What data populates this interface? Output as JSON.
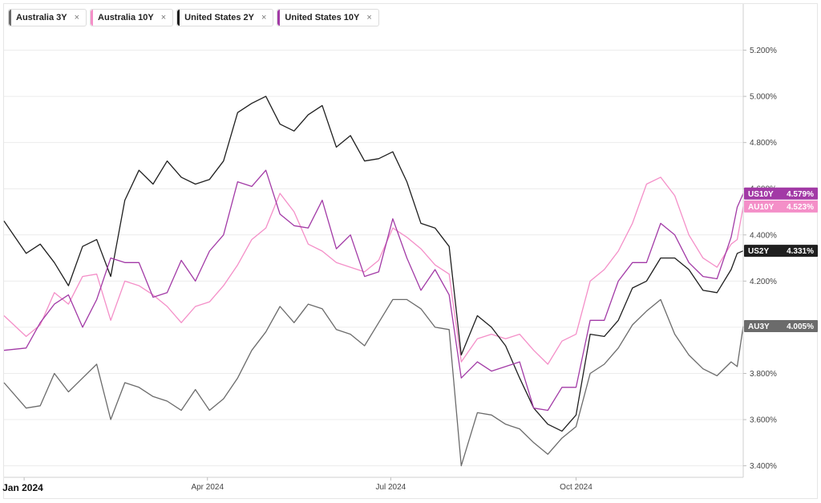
{
  "legend": [
    {
      "label": "Australia 3Y",
      "color": "#6b6b6b",
      "close": "×"
    },
    {
      "label": "Australia 10Y",
      "color": "#f48fc8",
      "close": "×"
    },
    {
      "label": "United States 2Y",
      "color": "#1f1f1f",
      "close": "×"
    },
    {
      "label": "United States 10Y",
      "color": "#a23aa6",
      "close": "×"
    }
  ],
  "chart_data": {
    "type": "line",
    "title": "",
    "xlabel": "",
    "ylabel": "",
    "x_range": [
      "2023-12-22",
      "2024-12-23"
    ],
    "ylim": [
      3.35,
      5.4
    ],
    "y_ticks": [
      "3.400%",
      "3.600%",
      "3.800%",
      "4.000%",
      "4.200%",
      "4.400%",
      "4.600%",
      "4.800%",
      "5.000%",
      "5.200%"
    ],
    "x_ticks": [
      {
        "date": "2024-01-01",
        "label": "Jan 2024"
      },
      {
        "date": "2024-04-01",
        "label": "Apr 2024"
      },
      {
        "date": "2024-07-01",
        "label": "Jul 2024"
      },
      {
        "date": "2024-10-01",
        "label": "Oct 2024"
      }
    ],
    "grid": "horizontal",
    "series": [
      {
        "name": "Australia 3Y",
        "tag": "AU3Y",
        "last": "4.005%",
        "color": "#6b6b6b",
        "points": [
          [
            "2023-12-22",
            3.76
          ],
          [
            "2024-01-02",
            3.65
          ],
          [
            "2024-01-09",
            3.66
          ],
          [
            "2024-01-16",
            3.8
          ],
          [
            "2024-01-23",
            3.72
          ],
          [
            "2024-01-30",
            3.78
          ],
          [
            "2024-02-06",
            3.84
          ],
          [
            "2024-02-13",
            3.6
          ],
          [
            "2024-02-20",
            3.76
          ],
          [
            "2024-02-27",
            3.74
          ],
          [
            "2024-03-05",
            3.7
          ],
          [
            "2024-03-12",
            3.68
          ],
          [
            "2024-03-19",
            3.64
          ],
          [
            "2024-03-26",
            3.73
          ],
          [
            "2024-04-02",
            3.64
          ],
          [
            "2024-04-09",
            3.69
          ],
          [
            "2024-04-16",
            3.78
          ],
          [
            "2024-04-23",
            3.9
          ],
          [
            "2024-04-30",
            3.98
          ],
          [
            "2024-05-07",
            4.09
          ],
          [
            "2024-05-14",
            4.02
          ],
          [
            "2024-05-21",
            4.1
          ],
          [
            "2024-05-28",
            4.08
          ],
          [
            "2024-06-04",
            3.99
          ],
          [
            "2024-06-11",
            3.97
          ],
          [
            "2024-06-18",
            3.92
          ],
          [
            "2024-06-25",
            4.02
          ],
          [
            "2024-07-02",
            4.12
          ],
          [
            "2024-07-09",
            4.12
          ],
          [
            "2024-07-16",
            4.08
          ],
          [
            "2024-07-23",
            4.0
          ],
          [
            "2024-07-30",
            3.99
          ],
          [
            "2024-08-05",
            3.4
          ],
          [
            "2024-08-13",
            3.63
          ],
          [
            "2024-08-20",
            3.62
          ],
          [
            "2024-08-27",
            3.58
          ],
          [
            "2024-09-03",
            3.56
          ],
          [
            "2024-09-10",
            3.5
          ],
          [
            "2024-09-17",
            3.45
          ],
          [
            "2024-09-24",
            3.52
          ],
          [
            "2024-10-01",
            3.57
          ],
          [
            "2024-10-08",
            3.8
          ],
          [
            "2024-10-15",
            3.84
          ],
          [
            "2024-10-22",
            3.91
          ],
          [
            "2024-10-29",
            4.01
          ],
          [
            "2024-11-05",
            4.07
          ],
          [
            "2024-11-12",
            4.12
          ],
          [
            "2024-11-19",
            3.97
          ],
          [
            "2024-11-26",
            3.88
          ],
          [
            "2024-12-03",
            3.82
          ],
          [
            "2024-12-10",
            3.79
          ],
          [
            "2024-12-17",
            3.85
          ],
          [
            "2024-12-20",
            3.83
          ],
          [
            "2024-12-23",
            4.005
          ]
        ]
      },
      {
        "name": "Australia 10Y",
        "tag": "AU10Y",
        "last": "4.523%",
        "color": "#f48fc8",
        "points": [
          [
            "2023-12-22",
            4.05
          ],
          [
            "2024-01-02",
            3.96
          ],
          [
            "2024-01-09",
            4.01
          ],
          [
            "2024-01-16",
            4.15
          ],
          [
            "2024-01-23",
            4.1
          ],
          [
            "2024-01-30",
            4.22
          ],
          [
            "2024-02-06",
            4.23
          ],
          [
            "2024-02-13",
            4.03
          ],
          [
            "2024-02-20",
            4.2
          ],
          [
            "2024-02-27",
            4.18
          ],
          [
            "2024-03-05",
            4.14
          ],
          [
            "2024-03-12",
            4.09
          ],
          [
            "2024-03-19",
            4.02
          ],
          [
            "2024-03-26",
            4.09
          ],
          [
            "2024-04-02",
            4.11
          ],
          [
            "2024-04-09",
            4.18
          ],
          [
            "2024-04-16",
            4.27
          ],
          [
            "2024-04-23",
            4.38
          ],
          [
            "2024-04-30",
            4.43
          ],
          [
            "2024-05-07",
            4.58
          ],
          [
            "2024-05-14",
            4.5
          ],
          [
            "2024-05-21",
            4.36
          ],
          [
            "2024-05-28",
            4.33
          ],
          [
            "2024-06-04",
            4.28
          ],
          [
            "2024-06-11",
            4.26
          ],
          [
            "2024-06-18",
            4.24
          ],
          [
            "2024-06-25",
            4.29
          ],
          [
            "2024-07-02",
            4.43
          ],
          [
            "2024-07-09",
            4.39
          ],
          [
            "2024-07-16",
            4.34
          ],
          [
            "2024-07-23",
            4.27
          ],
          [
            "2024-07-30",
            4.23
          ],
          [
            "2024-08-05",
            3.85
          ],
          [
            "2024-08-13",
            3.95
          ],
          [
            "2024-08-20",
            3.97
          ],
          [
            "2024-08-27",
            3.95
          ],
          [
            "2024-09-03",
            3.97
          ],
          [
            "2024-09-10",
            3.9
          ],
          [
            "2024-09-17",
            3.84
          ],
          [
            "2024-09-24",
            3.94
          ],
          [
            "2024-10-01",
            3.97
          ],
          [
            "2024-10-08",
            4.2
          ],
          [
            "2024-10-15",
            4.25
          ],
          [
            "2024-10-22",
            4.33
          ],
          [
            "2024-10-29",
            4.45
          ],
          [
            "2024-11-05",
            4.62
          ],
          [
            "2024-11-12",
            4.65
          ],
          [
            "2024-11-19",
            4.57
          ],
          [
            "2024-11-26",
            4.4
          ],
          [
            "2024-12-03",
            4.3
          ],
          [
            "2024-12-10",
            4.26
          ],
          [
            "2024-12-17",
            4.36
          ],
          [
            "2024-12-20",
            4.38
          ],
          [
            "2024-12-23",
            4.523
          ]
        ]
      },
      {
        "name": "United States 2Y",
        "tag": "US2Y",
        "last": "4.331%",
        "color": "#1f1f1f",
        "points": [
          [
            "2023-12-22",
            4.46
          ],
          [
            "2024-01-02",
            4.32
          ],
          [
            "2024-01-09",
            4.36
          ],
          [
            "2024-01-16",
            4.28
          ],
          [
            "2024-01-23",
            4.18
          ],
          [
            "2024-01-30",
            4.35
          ],
          [
            "2024-02-06",
            4.38
          ],
          [
            "2024-02-13",
            4.22
          ],
          [
            "2024-02-20",
            4.55
          ],
          [
            "2024-02-27",
            4.68
          ],
          [
            "2024-03-05",
            4.62
          ],
          [
            "2024-03-12",
            4.72
          ],
          [
            "2024-03-19",
            4.65
          ],
          [
            "2024-03-26",
            4.62
          ],
          [
            "2024-04-02",
            4.64
          ],
          [
            "2024-04-09",
            4.72
          ],
          [
            "2024-04-16",
            4.93
          ],
          [
            "2024-04-23",
            4.97
          ],
          [
            "2024-04-30",
            5.0
          ],
          [
            "2024-05-07",
            4.88
          ],
          [
            "2024-05-14",
            4.85
          ],
          [
            "2024-05-21",
            4.92
          ],
          [
            "2024-05-28",
            4.96
          ],
          [
            "2024-06-04",
            4.78
          ],
          [
            "2024-06-11",
            4.83
          ],
          [
            "2024-06-18",
            4.72
          ],
          [
            "2024-06-25",
            4.73
          ],
          [
            "2024-07-02",
            4.76
          ],
          [
            "2024-07-09",
            4.63
          ],
          [
            "2024-07-16",
            4.45
          ],
          [
            "2024-07-23",
            4.43
          ],
          [
            "2024-07-30",
            4.35
          ],
          [
            "2024-08-05",
            3.88
          ],
          [
            "2024-08-13",
            4.05
          ],
          [
            "2024-08-20",
            4.0
          ],
          [
            "2024-08-27",
            3.92
          ],
          [
            "2024-09-03",
            3.78
          ],
          [
            "2024-09-10",
            3.65
          ],
          [
            "2024-09-17",
            3.58
          ],
          [
            "2024-09-24",
            3.55
          ],
          [
            "2024-10-01",
            3.62
          ],
          [
            "2024-10-08",
            3.97
          ],
          [
            "2024-10-15",
            3.96
          ],
          [
            "2024-10-22",
            4.03
          ],
          [
            "2024-10-29",
            4.17
          ],
          [
            "2024-11-05",
            4.2
          ],
          [
            "2024-11-12",
            4.3
          ],
          [
            "2024-11-19",
            4.3
          ],
          [
            "2024-11-26",
            4.25
          ],
          [
            "2024-12-03",
            4.16
          ],
          [
            "2024-12-10",
            4.15
          ],
          [
            "2024-12-17",
            4.25
          ],
          [
            "2024-12-20",
            4.32
          ],
          [
            "2024-12-23",
            4.331
          ]
        ]
      },
      {
        "name": "United States 10Y",
        "tag": "US10Y",
        "last": "4.579%",
        "color": "#a23aa6",
        "points": [
          [
            "2023-12-22",
            3.9
          ],
          [
            "2024-01-02",
            3.91
          ],
          [
            "2024-01-09",
            4.02
          ],
          [
            "2024-01-16",
            4.1
          ],
          [
            "2024-01-23",
            4.14
          ],
          [
            "2024-01-30",
            4.0
          ],
          [
            "2024-02-06",
            4.12
          ],
          [
            "2024-02-13",
            4.3
          ],
          [
            "2024-02-20",
            4.28
          ],
          [
            "2024-02-27",
            4.28
          ],
          [
            "2024-03-05",
            4.13
          ],
          [
            "2024-03-12",
            4.15
          ],
          [
            "2024-03-19",
            4.29
          ],
          [
            "2024-03-26",
            4.2
          ],
          [
            "2024-04-02",
            4.33
          ],
          [
            "2024-04-09",
            4.4
          ],
          [
            "2024-04-16",
            4.63
          ],
          [
            "2024-04-23",
            4.61
          ],
          [
            "2024-04-30",
            4.68
          ],
          [
            "2024-05-07",
            4.49
          ],
          [
            "2024-05-14",
            4.44
          ],
          [
            "2024-05-21",
            4.43
          ],
          [
            "2024-05-28",
            4.55
          ],
          [
            "2024-06-04",
            4.34
          ],
          [
            "2024-06-11",
            4.4
          ],
          [
            "2024-06-18",
            4.22
          ],
          [
            "2024-06-25",
            4.24
          ],
          [
            "2024-07-02",
            4.47
          ],
          [
            "2024-07-09",
            4.3
          ],
          [
            "2024-07-16",
            4.16
          ],
          [
            "2024-07-23",
            4.25
          ],
          [
            "2024-07-30",
            4.14
          ],
          [
            "2024-08-05",
            3.78
          ],
          [
            "2024-08-13",
            3.85
          ],
          [
            "2024-08-20",
            3.81
          ],
          [
            "2024-08-27",
            3.83
          ],
          [
            "2024-09-03",
            3.85
          ],
          [
            "2024-09-10",
            3.65
          ],
          [
            "2024-09-17",
            3.64
          ],
          [
            "2024-09-24",
            3.74
          ],
          [
            "2024-10-01",
            3.74
          ],
          [
            "2024-10-08",
            4.03
          ],
          [
            "2024-10-15",
            4.03
          ],
          [
            "2024-10-22",
            4.2
          ],
          [
            "2024-10-29",
            4.28
          ],
          [
            "2024-11-05",
            4.28
          ],
          [
            "2024-11-12",
            4.45
          ],
          [
            "2024-11-19",
            4.4
          ],
          [
            "2024-11-26",
            4.28
          ],
          [
            "2024-12-03",
            4.22
          ],
          [
            "2024-12-10",
            4.21
          ],
          [
            "2024-12-17",
            4.39
          ],
          [
            "2024-12-20",
            4.52
          ],
          [
            "2024-12-23",
            4.579
          ]
        ]
      }
    ]
  }
}
